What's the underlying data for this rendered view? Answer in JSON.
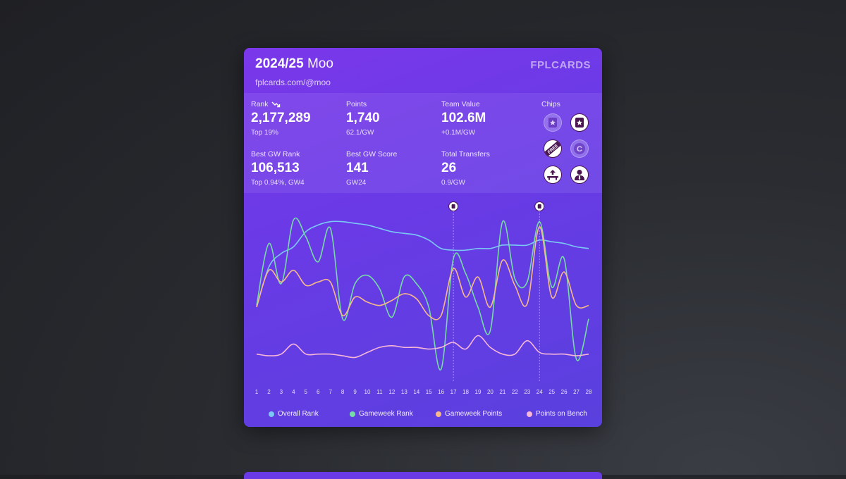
{
  "header": {
    "season": "2024/25",
    "name": "Moo",
    "url": "fplcards.com/@moo",
    "brand": "FPLCARDS"
  },
  "stats": {
    "rank": {
      "label": "Rank",
      "value": "2,177,289",
      "sub": "Top 19%",
      "trend_icon": "trend-down-icon"
    },
    "points": {
      "label": "Points",
      "value": "1,740",
      "sub": "62.1/GW"
    },
    "team_value": {
      "label": "Team Value",
      "value": "102.6M",
      "sub": "+0.1M/GW"
    },
    "best_gw_rank": {
      "label": "Best GW Rank",
      "value": "106,513",
      "sub": "Top 0.94%, GW4"
    },
    "best_gw_score": {
      "label": "Best GW Score",
      "value": "141",
      "sub": "GW24"
    },
    "total_transfers": {
      "label": "Total Transfers",
      "value": "26",
      "sub": "0.9/GW"
    }
  },
  "chips": {
    "label": "Chips",
    "items": [
      {
        "icon": "wildcard-icon",
        "used": false
      },
      {
        "icon": "wildcard-icon",
        "used": true
      },
      {
        "icon": "free-hit-icon",
        "used": true,
        "text": "FREE"
      },
      {
        "icon": "triple-captain-icon",
        "used": false,
        "text": "C"
      },
      {
        "icon": "bench-boost-icon",
        "used": true
      },
      {
        "icon": "assistant-manager-icon",
        "used": true
      }
    ]
  },
  "chart_data": {
    "type": "line",
    "x": [
      1,
      2,
      3,
      4,
      5,
      6,
      7,
      8,
      9,
      10,
      11,
      12,
      13,
      14,
      15,
      16,
      17,
      18,
      19,
      20,
      21,
      22,
      23,
      24,
      25,
      26,
      27,
      28
    ],
    "series": [
      {
        "name": "Overall Rank",
        "color": "#7cc8f5",
        "values": [
          0.42,
          0.66,
          0.74,
          0.78,
          0.87,
          0.91,
          0.93,
          0.93,
          0.92,
          0.91,
          0.89,
          0.87,
          0.86,
          0.85,
          0.82,
          0.77,
          0.76,
          0.76,
          0.77,
          0.77,
          0.79,
          0.79,
          0.79,
          0.82,
          0.81,
          0.8,
          0.78,
          0.77
        ]
      },
      {
        "name": "Gameweek Rank",
        "color": "#74dca4",
        "values": [
          0.43,
          0.8,
          0.56,
          0.94,
          0.84,
          0.69,
          0.89,
          0.35,
          0.56,
          0.61,
          0.53,
          0.36,
          0.6,
          0.56,
          0.42,
          0.05,
          0.71,
          0.62,
          0.42,
          0.28,
          0.93,
          0.59,
          0.57,
          0.93,
          0.54,
          0.71,
          0.11,
          0.35
        ]
      },
      {
        "name": "Gameweek Points",
        "color": "#f7b98a",
        "values": [
          0.42,
          0.64,
          0.57,
          0.64,
          0.55,
          0.57,
          0.57,
          0.37,
          0.48,
          0.45,
          0.43,
          0.46,
          0.5,
          0.47,
          0.37,
          0.37,
          0.65,
          0.48,
          0.6,
          0.42,
          0.7,
          0.55,
          0.44,
          0.9,
          0.48,
          0.63,
          0.43,
          0.43
        ]
      },
      {
        "name": "Points on Bench",
        "color": "#f6b7d8",
        "values": [
          0.14,
          0.13,
          0.14,
          0.2,
          0.14,
          0.14,
          0.14,
          0.13,
          0.12,
          0.15,
          0.18,
          0.19,
          0.18,
          0.18,
          0.17,
          0.18,
          0.21,
          0.17,
          0.25,
          0.18,
          0.14,
          0.14,
          0.22,
          0.15,
          0.14,
          0.14,
          0.13,
          0.14
        ]
      }
    ],
    "markers": [
      {
        "gw": 17,
        "icon": "wildcard-icon"
      },
      {
        "gw": 24,
        "icon": "bench-boost-icon"
      }
    ],
    "ylim": [
      0,
      1
    ],
    "grid": false,
    "legend": "bottom"
  }
}
